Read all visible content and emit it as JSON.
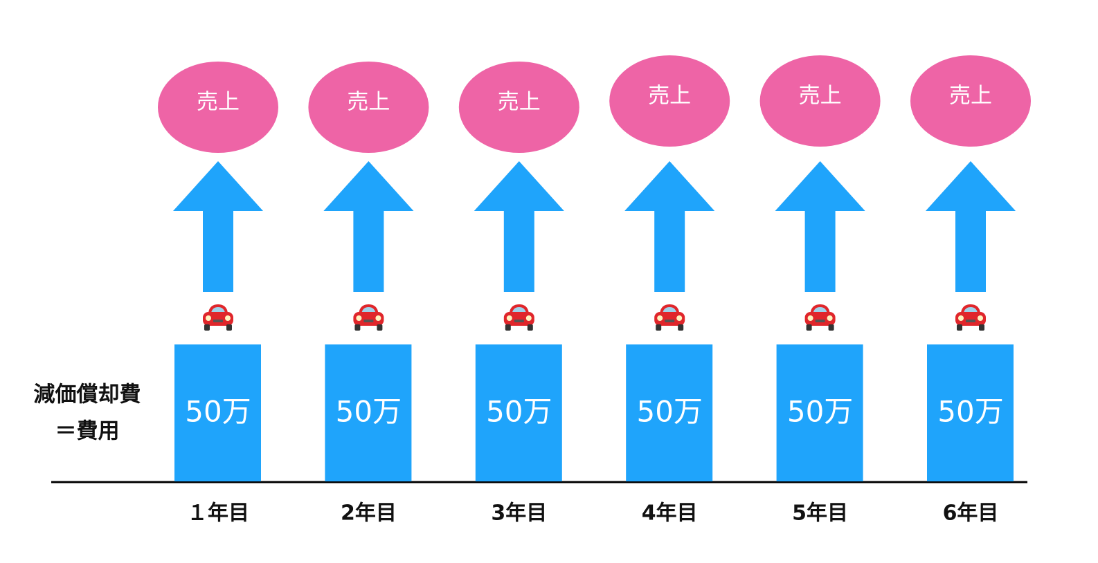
{
  "side_label": [
    "減価償却費",
    "＝費用"
  ],
  "columns": [
    {
      "revenue": "売上",
      "amount": "50万",
      "year": "１年目"
    },
    {
      "revenue": "売上",
      "amount": "50万",
      "year": "2年目"
    },
    {
      "revenue": "売上",
      "amount": "50万",
      "year": "3年目"
    },
    {
      "revenue": "売上",
      "amount": "50万",
      "year": "4年目"
    },
    {
      "revenue": "売上",
      "amount": "50万",
      "year": "5年目"
    },
    {
      "revenue": "売上",
      "amount": "50万",
      "year": "6年目"
    }
  ]
}
